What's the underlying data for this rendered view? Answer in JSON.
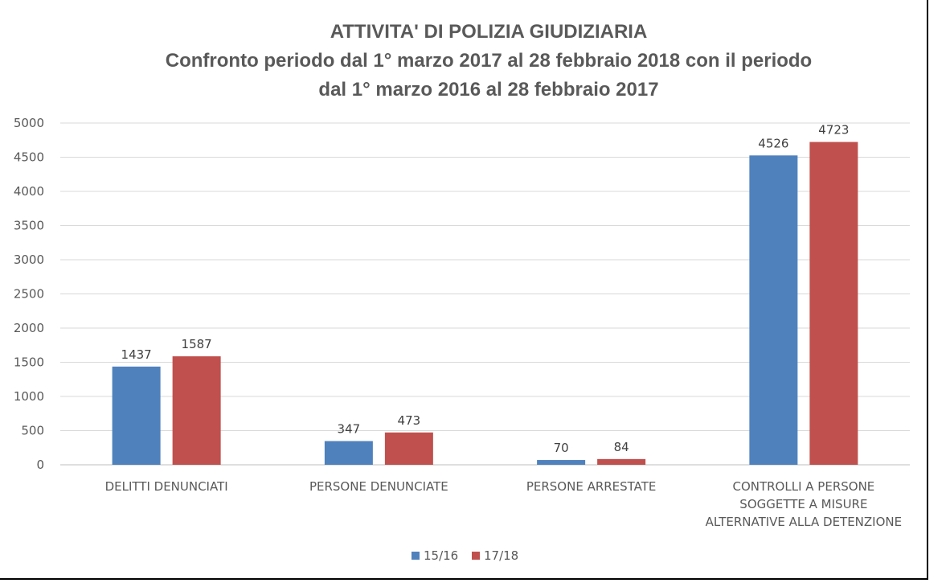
{
  "chart_data": {
    "type": "bar",
    "title_lines": [
      "ATTIVITA' DI POLIZIA GIUDIZIARIA",
      "Confronto periodo dal 1° marzo 2017 al 28 febbraio 2018 con il periodo",
      "dal 1° marzo 2016 al 28 febbraio 2017"
    ],
    "categories": [
      [
        "DELITTI DENUNCIATI"
      ],
      [
        "PERSONE DENUNCIATE"
      ],
      [
        "PERSONE ARRESTATE"
      ],
      [
        "CONTROLLI A PERSONE",
        "SOGGETTE A MISURE",
        "ALTERNATIVE ALLA DETENZIONE"
      ]
    ],
    "series": [
      {
        "name": "15/16",
        "color": "#4F81BD",
        "values": [
          1437,
          347,
          70,
          4526
        ]
      },
      {
        "name": "17/18",
        "color": "#C0504D",
        "values": [
          1587,
          473,
          84,
          4723
        ]
      }
    ],
    "ylim": [
      0,
      5000
    ],
    "yticks": [
      0,
      500,
      1000,
      1500,
      2000,
      2500,
      3000,
      3500,
      4000,
      4500,
      5000
    ],
    "grid": true,
    "legend_position": "bottom"
  }
}
